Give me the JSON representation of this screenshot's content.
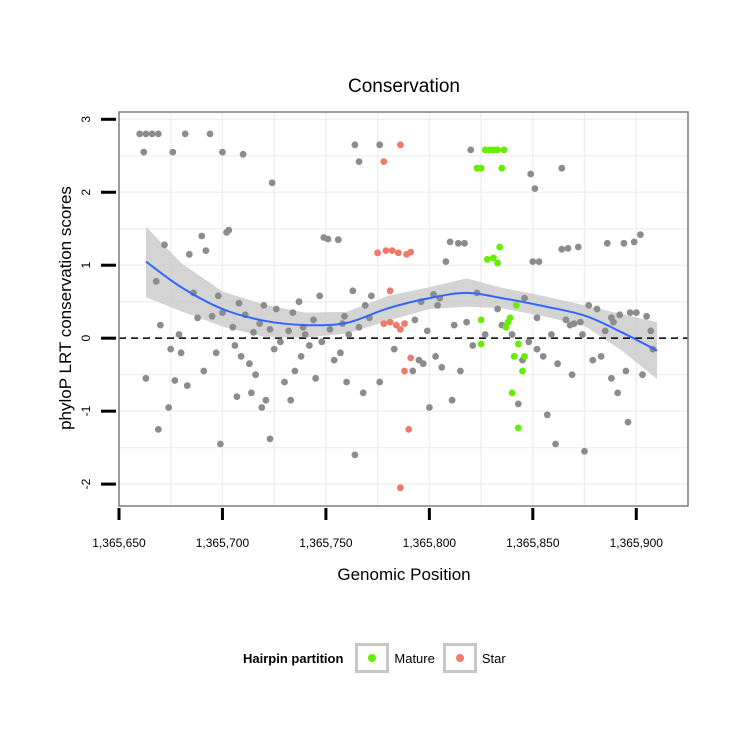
{
  "chart_data": {
    "type": "scatter",
    "title": "Conservation",
    "xlabel": "Genomic Position",
    "ylabel": "phyloP LRT conservation scores",
    "xlim": [
      1365650,
      1365925
    ],
    "ylim": [
      -2.3,
      3.1
    ],
    "x_ticks": [
      1365650,
      1365700,
      1365750,
      1365800,
      1365850,
      1365900
    ],
    "x_tick_labels": [
      "1,365,650",
      "1,365,700",
      "1,365,750",
      "1,365,800",
      "1,365,850",
      "1,365,900"
    ],
    "y_ticks": [
      -2,
      -1,
      0,
      1,
      2,
      3
    ],
    "y_tick_labels": [
      "-2",
      "-1",
      "0",
      "1",
      "2",
      "3"
    ],
    "grid": true,
    "reference_line": {
      "y": 0,
      "style": "dashed"
    },
    "legend": {
      "title": "Hairpin partition",
      "position": "bottom",
      "entries": [
        {
          "label": "Mature",
          "color": "#66ee00"
        },
        {
          "label": "Star",
          "color": "#f07a6a"
        }
      ]
    },
    "colors": {
      "other": "#8c8c8c",
      "mature": "#66ee00",
      "star": "#f07a6a",
      "smooth": "#3366ff",
      "band": "#cccccc"
    },
    "series": [
      {
        "name": "Other",
        "points": [
          [
            1365660,
            2.8
          ],
          [
            1365663,
            2.8
          ],
          [
            1365666,
            2.8
          ],
          [
            1365669,
            2.8
          ],
          [
            1365662,
            2.55
          ],
          [
            1365682,
            2.8
          ],
          [
            1365694,
            2.8
          ],
          [
            1365676,
            2.55
          ],
          [
            1365700,
            2.55
          ],
          [
            1365710,
            2.52
          ],
          [
            1365724,
            2.13
          ],
          [
            1365764,
            2.65
          ],
          [
            1365766,
            2.42
          ],
          [
            1365776,
            2.65
          ],
          [
            1365820,
            2.58
          ],
          [
            1365849,
            2.25
          ],
          [
            1365851,
            2.05
          ],
          [
            1365864,
            2.33
          ],
          [
            1365668,
            0.78
          ],
          [
            1365670,
            0.18
          ],
          [
            1365672,
            1.28
          ],
          [
            1365675,
            -0.15
          ],
          [
            1365677,
            -0.58
          ],
          [
            1365679,
            0.05
          ],
          [
            1365680,
            -0.2
          ],
          [
            1365684,
            1.15
          ],
          [
            1365686,
            0.62
          ],
          [
            1365688,
            0.28
          ],
          [
            1365690,
            1.4
          ],
          [
            1365692,
            1.2
          ],
          [
            1365695,
            0.3
          ],
          [
            1365697,
            -0.2
          ],
          [
            1365698,
            0.58
          ],
          [
            1365700,
            0.35
          ],
          [
            1365702,
            1.45
          ],
          [
            1365703,
            1.48
          ],
          [
            1365705,
            0.15
          ],
          [
            1365706,
            -0.1
          ],
          [
            1365708,
            0.48
          ],
          [
            1365709,
            -0.25
          ],
          [
            1365711,
            0.32
          ],
          [
            1365713,
            -0.35
          ],
          [
            1365715,
            0.08
          ],
          [
            1365716,
            -0.5
          ],
          [
            1365718,
            0.2
          ],
          [
            1365720,
            0.45
          ],
          [
            1365721,
            -0.85
          ],
          [
            1365723,
            0.12
          ],
          [
            1365725,
            -0.15
          ],
          [
            1365726,
            0.4
          ],
          [
            1365728,
            -0.05
          ],
          [
            1365730,
            -0.6
          ],
          [
            1365732,
            0.1
          ],
          [
            1365734,
            0.35
          ],
          [
            1365735,
            -0.45
          ],
          [
            1365737,
            0.5
          ],
          [
            1365738,
            -0.25
          ],
          [
            1365740,
            0.05
          ],
          [
            1365742,
            -0.1
          ],
          [
            1365744,
            0.25
          ],
          [
            1365745,
            -0.55
          ],
          [
            1365747,
            0.58
          ],
          [
            1365748,
            -0.05
          ],
          [
            1365749,
            1.38
          ],
          [
            1365751,
            1.36
          ],
          [
            1365752,
            0.12
          ],
          [
            1365754,
            -0.3
          ],
          [
            1365756,
            1.35
          ],
          [
            1365757,
            -0.2
          ],
          [
            1365759,
            0.3
          ],
          [
            1365760,
            -0.6
          ],
          [
            1365761,
            0.05
          ],
          [
            1365763,
            0.65
          ],
          [
            1365764,
            -1.6
          ],
          [
            1365766,
            0.15
          ],
          [
            1365768,
            -0.75
          ],
          [
            1365769,
            0.45
          ],
          [
            1365771,
            0.28
          ],
          [
            1365772,
            0.58
          ],
          [
            1365783,
            -0.15
          ],
          [
            1365793,
            0.25
          ],
          [
            1365795,
            -0.3
          ],
          [
            1365796,
            0.5
          ],
          [
            1365797,
            -0.35
          ],
          [
            1365799,
            0.1
          ],
          [
            1365800,
            -0.95
          ],
          [
            1365802,
            0.6
          ],
          [
            1365803,
            -0.25
          ],
          [
            1365805,
            0.55
          ],
          [
            1365806,
            -0.4
          ],
          [
            1365808,
            1.05
          ],
          [
            1365810,
            1.32
          ],
          [
            1365811,
            -0.85
          ],
          [
            1365812,
            0.18
          ],
          [
            1365814,
            1.3
          ],
          [
            1365815,
            -0.45
          ],
          [
            1365817,
            1.3
          ],
          [
            1365818,
            0.22
          ],
          [
            1365821,
            -0.1
          ],
          [
            1365823,
            0.62
          ],
          [
            1365833,
            0.4
          ],
          [
            1365835,
            0.18
          ],
          [
            1365840,
            0.05
          ],
          [
            1365846,
            0.55
          ],
          [
            1365848,
            -0.05
          ],
          [
            1365850,
            1.05
          ],
          [
            1365852,
            0.28
          ],
          [
            1365853,
            1.05
          ],
          [
            1365855,
            -0.25
          ],
          [
            1365857,
            -1.05
          ],
          [
            1365859,
            0.05
          ],
          [
            1365861,
            -1.45
          ],
          [
            1365862,
            -0.35
          ],
          [
            1365864,
            1.22
          ],
          [
            1365866,
            0.25
          ],
          [
            1365867,
            1.23
          ],
          [
            1365869,
            -0.5
          ],
          [
            1365870,
            0.2
          ],
          [
            1365872,
            1.25
          ],
          [
            1365874,
            0.05
          ],
          [
            1365875,
            -1.55
          ],
          [
            1365877,
            0.45
          ],
          [
            1365879,
            -0.3
          ],
          [
            1365881,
            0.4
          ],
          [
            1365883,
            -0.25
          ],
          [
            1365885,
            0.1
          ],
          [
            1365886,
            1.3
          ],
          [
            1365888,
            -0.55
          ],
          [
            1365889,
            0.22
          ],
          [
            1365891,
            -0.75
          ],
          [
            1365892,
            0.32
          ],
          [
            1365894,
            1.3
          ],
          [
            1365895,
            -0.45
          ],
          [
            1365896,
            -1.15
          ],
          [
            1365897,
            0.35
          ],
          [
            1365899,
            1.32
          ],
          [
            1365900,
            0.35
          ],
          [
            1365902,
            1.42
          ],
          [
            1365903,
            -0.5
          ],
          [
            1365905,
            0.3
          ],
          [
            1365907,
            0.1
          ],
          [
            1365908,
            -0.15
          ],
          [
            1365888,
            0.28
          ],
          [
            1365873,
            0.22
          ],
          [
            1365868,
            0.18
          ],
          [
            1365845,
            -0.3
          ],
          [
            1365843,
            -0.9
          ],
          [
            1365804,
            0.45
          ],
          [
            1365792,
            -0.45
          ],
          [
            1365776,
            -0.6
          ],
          [
            1365758,
            0.2
          ],
          [
            1365739,
            0.15
          ],
          [
            1365733,
            -0.85
          ],
          [
            1365719,
            -0.95
          ],
          [
            1365714,
            -0.75
          ],
          [
            1365707,
            -0.8
          ],
          [
            1365691,
            -0.45
          ],
          [
            1365683,
            -0.65
          ],
          [
            1365674,
            -0.95
          ],
          [
            1365669,
            -1.25
          ],
          [
            1365699,
            -1.45
          ],
          [
            1365723,
            -1.38
          ],
          [
            1365663,
            -0.55
          ],
          [
            1365852,
            -0.15
          ],
          [
            1365827,
            0.05
          ]
        ]
      },
      {
        "name": "Mature",
        "points": [
          [
            1365823,
            2.33
          ],
          [
            1365825,
            2.33
          ],
          [
            1365827,
            2.58
          ],
          [
            1365829,
            2.58
          ],
          [
            1365831,
            2.58
          ],
          [
            1365833,
            2.58
          ],
          [
            1365836,
            2.58
          ],
          [
            1365835,
            2.33
          ],
          [
            1365828,
            1.08
          ],
          [
            1365831,
            1.1
          ],
          [
            1365833,
            1.03
          ],
          [
            1365834,
            1.25
          ],
          [
            1365825,
            0.25
          ],
          [
            1365838,
            0.22
          ],
          [
            1365839,
            0.28
          ],
          [
            1365837,
            0.15
          ],
          [
            1365842,
            0.45
          ],
          [
            1365825,
            -0.08
          ],
          [
            1365843,
            -0.08
          ],
          [
            1365841,
            -0.25
          ],
          [
            1365846,
            -0.25
          ],
          [
            1365845,
            -0.45
          ],
          [
            1365840,
            -0.75
          ],
          [
            1365843,
            -1.23
          ]
        ]
      },
      {
        "name": "Star",
        "points": [
          [
            1365786,
            2.65
          ],
          [
            1365778,
            2.42
          ],
          [
            1365775,
            1.17
          ],
          [
            1365779,
            1.2
          ],
          [
            1365782,
            1.2
          ],
          [
            1365785,
            1.17
          ],
          [
            1365789,
            1.15
          ],
          [
            1365791,
            1.18
          ],
          [
            1365781,
            0.65
          ],
          [
            1365778,
            0.2
          ],
          [
            1365781,
            0.22
          ],
          [
            1365784,
            0.18
          ],
          [
            1365786,
            0.12
          ],
          [
            1365788,
            0.2
          ],
          [
            1365791,
            -0.27
          ],
          [
            1365788,
            -0.45
          ],
          [
            1365790,
            -1.25
          ],
          [
            1365786,
            -2.05
          ]
        ]
      }
    ],
    "smooth_curve": [
      [
        1365663,
        1.05
      ],
      [
        1365680,
        0.7
      ],
      [
        1365700,
        0.4
      ],
      [
        1365720,
        0.24
      ],
      [
        1365740,
        0.18
      ],
      [
        1365760,
        0.21
      ],
      [
        1365780,
        0.41
      ],
      [
        1365800,
        0.55
      ],
      [
        1365818,
        0.62
      ],
      [
        1365835,
        0.55
      ],
      [
        1365855,
        0.44
      ],
      [
        1365875,
        0.31
      ],
      [
        1365893,
        0.08
      ],
      [
        1365910,
        -0.17
      ]
    ],
    "confidence_upper": [
      [
        1365663,
        1.53
      ],
      [
        1365680,
        1.03
      ],
      [
        1365700,
        0.64
      ],
      [
        1365720,
        0.46
      ],
      [
        1365740,
        0.35
      ],
      [
        1365760,
        0.36
      ],
      [
        1365780,
        0.58
      ],
      [
        1365800,
        0.7
      ],
      [
        1365818,
        0.82
      ],
      [
        1365835,
        0.69
      ],
      [
        1365855,
        0.58
      ],
      [
        1365875,
        0.45
      ],
      [
        1365893,
        0.33
      ],
      [
        1365910,
        0.22
      ]
    ],
    "confidence_lower": [
      [
        1365663,
        0.56
      ],
      [
        1365680,
        0.37
      ],
      [
        1365700,
        0.16
      ],
      [
        1365720,
        0.02
      ],
      [
        1365740,
        0.01
      ],
      [
        1365760,
        0.06
      ],
      [
        1365780,
        0.24
      ],
      [
        1365800,
        0.4
      ],
      [
        1365818,
        0.43
      ],
      [
        1365835,
        0.41
      ],
      [
        1365855,
        0.3
      ],
      [
        1365875,
        0.17
      ],
      [
        1365893,
        -0.17
      ],
      [
        1365910,
        -0.56
      ]
    ]
  }
}
